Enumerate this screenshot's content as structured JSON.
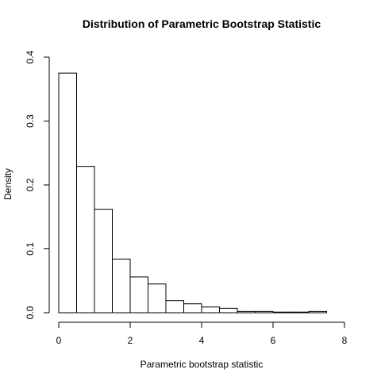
{
  "chart_data": {
    "type": "bar",
    "title": "Distribution of Parametric Bootstrap Statistic",
    "xlabel": "Parametric bootstrap statistic",
    "ylabel": "Density",
    "xlim": [
      0,
      8
    ],
    "ylim": [
      0,
      0.4
    ],
    "x_ticks": [
      "0",
      "2",
      "4",
      "6",
      "8"
    ],
    "y_ticks": [
      "0.0",
      "0.1",
      "0.2",
      "0.3",
      "0.4"
    ],
    "bin_width": 0.5,
    "bins": [
      {
        "start": 0.0,
        "end": 0.5,
        "density": 0.375
      },
      {
        "start": 0.5,
        "end": 1.0,
        "density": 0.229
      },
      {
        "start": 1.0,
        "end": 1.5,
        "density": 0.162
      },
      {
        "start": 1.5,
        "end": 2.0,
        "density": 0.084
      },
      {
        "start": 2.0,
        "end": 2.5,
        "density": 0.056
      },
      {
        "start": 2.5,
        "end": 3.0,
        "density": 0.045
      },
      {
        "start": 3.0,
        "end": 3.5,
        "density": 0.019
      },
      {
        "start": 3.5,
        "end": 4.0,
        "density": 0.014
      },
      {
        "start": 4.0,
        "end": 4.5,
        "density": 0.009
      },
      {
        "start": 4.5,
        "end": 5.0,
        "density": 0.007
      },
      {
        "start": 5.0,
        "end": 5.5,
        "density": 0.002
      },
      {
        "start": 5.5,
        "end": 6.0,
        "density": 0.002
      },
      {
        "start": 6.0,
        "end": 6.5,
        "density": 0.001
      },
      {
        "start": 6.5,
        "end": 7.0,
        "density": 0.001
      },
      {
        "start": 7.0,
        "end": 7.5,
        "density": 0.002
      }
    ],
    "grid": false,
    "legend": "none"
  }
}
